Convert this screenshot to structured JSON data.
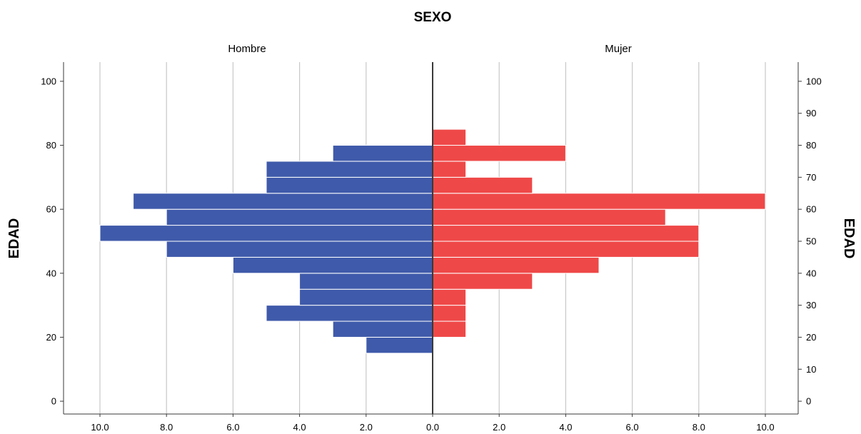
{
  "chart_data": {
    "type": "bar",
    "orientation": "horizontal-population-pyramid",
    "title": "SEXO",
    "ylabel_left": "EDAD",
    "ylabel_right": "EDAD",
    "bin_width": 5,
    "categories": [
      15,
      20,
      25,
      30,
      35,
      40,
      45,
      50,
      55,
      60,
      65,
      70,
      75,
      80,
      85
    ],
    "series": [
      {
        "name": "Hombre",
        "side": "left",
        "color": "#3f5aaa",
        "values": [
          2,
          3,
          5,
          4,
          4,
          6,
          8,
          10,
          8,
          9,
          5,
          5,
          3,
          0,
          0
        ]
      },
      {
        "name": "Mujer",
        "side": "right",
        "color": "#ef4848",
        "values": [
          0,
          1,
          1,
          1,
          3,
          5,
          8,
          8,
          7,
          10,
          3,
          1,
          4,
          1,
          0
        ]
      }
    ],
    "xlim": [
      0,
      10
    ],
    "x_ticks_left": [
      "10.0",
      "8.0",
      "6.0",
      "4.0",
      "2.0",
      "0.0"
    ],
    "x_ticks_right": [
      "0.0",
      "2.0",
      "4.0",
      "6.0",
      "8.0",
      "10.0"
    ],
    "ylim": [
      -4,
      106
    ],
    "y_ticks_left": [
      "0",
      "20",
      "40",
      "60",
      "80",
      "100"
    ],
    "y_ticks_right": [
      "0",
      "10",
      "20",
      "30",
      "40",
      "50",
      "60",
      "70",
      "80",
      "90",
      "100"
    ],
    "grid": true
  }
}
